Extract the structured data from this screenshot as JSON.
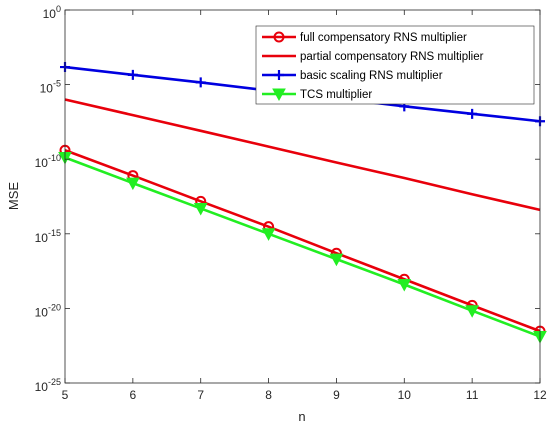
{
  "chart_data": {
    "type": "line",
    "xlabel": "n",
    "ylabel": "MSE",
    "x": [
      5,
      6,
      7,
      8,
      9,
      10,
      11,
      12
    ],
    "xlim": [
      5,
      12
    ],
    "ylim_exponent": [
      -25,
      0
    ],
    "yscale": "log",
    "x_ticks": [
      "5",
      "6",
      "7",
      "8",
      "9",
      "10",
      "11",
      "12"
    ],
    "y_ticks": [
      {
        "exp": 0,
        "base": "10",
        "sup": "0"
      },
      {
        "exp": -5,
        "base": "10",
        "sup": "-5"
      },
      {
        "exp": -10,
        "base": "10",
        "sup": "-10"
      },
      {
        "exp": -15,
        "base": "10",
        "sup": "-15"
      },
      {
        "exp": -20,
        "base": "10",
        "sup": "-20"
      },
      {
        "exp": -25,
        "base": "10",
        "sup": "-25"
      }
    ],
    "grid": false,
    "legend_position": "top-right",
    "series": [
      {
        "name": "full compensatory RNS multiplier",
        "color": "#e8000b",
        "marker": "circle",
        "values": [
          4e-10,
          8e-12,
          1.5e-13,
          3e-15,
          5e-17,
          9e-19,
          1.6e-20,
          3e-22
        ]
      },
      {
        "name": "partial compensatory RNS multiplier",
        "color": "#e8000b",
        "marker": "none",
        "values": [
          1e-06,
          9e-08,
          8e-09,
          7e-10,
          6e-11,
          5.5e-12,
          4.5e-13,
          4e-14
        ]
      },
      {
        "name": "basic scaling RNS multiplier",
        "color": "#0000e0",
        "marker": "plus",
        "values": [
          0.00015,
          4.5e-05,
          1.4e-05,
          4e-06,
          1.2e-06,
          3.5e-07,
          1.1e-07,
          3.5e-08
        ]
      },
      {
        "name": "TCS multiplier",
        "color": "#22ee22",
        "marker": "triangle-down",
        "values": [
          1.3e-10,
          2.5e-12,
          5e-14,
          1e-15,
          2e-17,
          4e-19,
          7e-21,
          1.3e-22
        ]
      }
    ]
  }
}
